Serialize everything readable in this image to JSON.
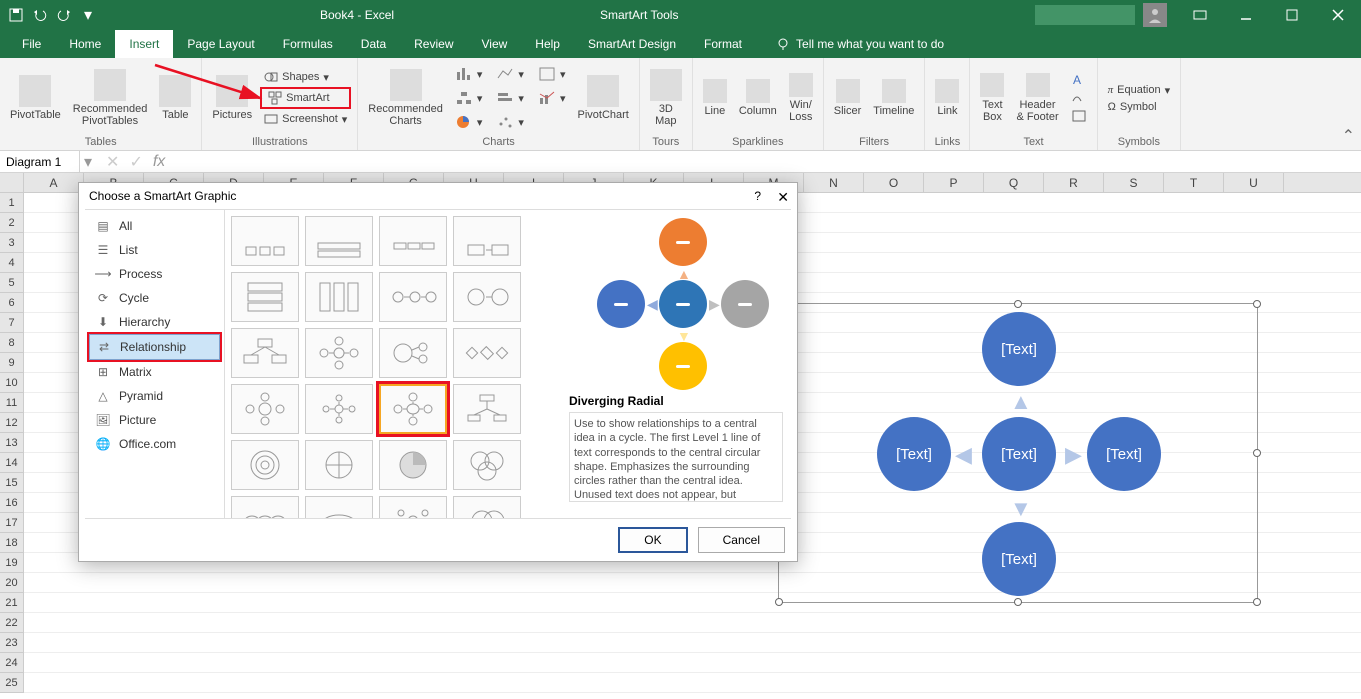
{
  "titlebar": {
    "doc_title": "Book4 - Excel",
    "context_tab": "SmartArt Tools"
  },
  "menu": {
    "tabs": [
      "File",
      "Home",
      "Insert",
      "Page Layout",
      "Formulas",
      "Data",
      "Review",
      "View",
      "Help",
      "SmartArt Design",
      "Format"
    ],
    "active_index": 2,
    "tell_me": "Tell me what you want to do"
  },
  "ribbon": {
    "tables": {
      "label": "Tables",
      "pivot": "PivotTable",
      "recommended": "Recommended\nPivotTables",
      "table": "Table"
    },
    "illustrations": {
      "label": "Illustrations",
      "pictures": "Pictures",
      "shapes": "Shapes",
      "smartart": "SmartArt",
      "screenshot": "Screenshot"
    },
    "charts": {
      "label": "Charts",
      "recommended": "Recommended\nCharts",
      "pivotchart": "PivotChart"
    },
    "tours": {
      "label": "Tours",
      "map": "3D\nMap"
    },
    "sparklines": {
      "label": "Sparklines",
      "line": "Line",
      "column": "Column",
      "winloss": "Win/\nLoss"
    },
    "filters": {
      "label": "Filters",
      "slicer": "Slicer",
      "timeline": "Timeline"
    },
    "links": {
      "label": "Links",
      "link": "Link"
    },
    "text": {
      "label": "Text",
      "textbox": "Text\nBox",
      "header": "Header\n& Footer"
    },
    "symbols": {
      "label": "Symbols",
      "equation": "Equation",
      "symbol": "Symbol"
    }
  },
  "formula_bar": {
    "name_box": "Diagram 1"
  },
  "columns": [
    "A",
    "B",
    "C",
    "D",
    "E",
    "F",
    "G",
    "H",
    "I",
    "J",
    "K",
    "L",
    "M",
    "N",
    "O",
    "P",
    "Q",
    "R",
    "S",
    "T",
    "U"
  ],
  "rows": [
    "1",
    "2",
    "3",
    "4",
    "5",
    "6",
    "7",
    "8",
    "9",
    "10",
    "11",
    "12",
    "13",
    "14",
    "15",
    "16",
    "17",
    "18",
    "19",
    "20",
    "21",
    "22",
    "23",
    "24",
    "25"
  ],
  "dialog": {
    "title": "Choose a SmartArt Graphic",
    "categories": [
      "All",
      "List",
      "Process",
      "Cycle",
      "Hierarchy",
      "Relationship",
      "Matrix",
      "Pyramid",
      "Picture",
      "Office.com"
    ],
    "selected_category_index": 5,
    "preview_title": "Diverging Radial",
    "preview_desc": "Use to show relationships to a central idea in a cycle. The first Level 1 line of text corresponds to the central circular shape. Emphasizes the surrounding circles rather than the central idea. Unused text does not appear, but remains available if you switch",
    "ok": "OK",
    "cancel": "Cancel",
    "preview_colors": {
      "top": "#ed7d31",
      "left": "#4472c4",
      "center": "#2e75b6",
      "right": "#a5a5a5",
      "bottom": "#ffc000",
      "arrow_up": "#f4b183",
      "arrow_down": "#ffe699",
      "arrow_left": "#8faadc",
      "arrow_right": "#bfbfbf"
    }
  },
  "smartart": {
    "placeholder": "[Text]",
    "circle_color": "#4472c4",
    "arrow_color": "#b4c7e7",
    "border_color": "#7f7f7f"
  }
}
